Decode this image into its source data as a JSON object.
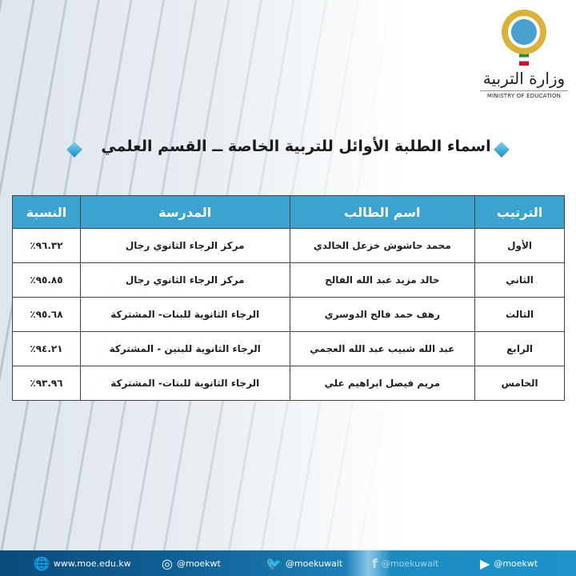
{
  "header": {
    "logo_ar": "وزارة التربية",
    "logo_en": "MINISTRY OF EDUCATION"
  },
  "title": "اسماء الطلبة الأوائل للتربية الخاصة ــ القسم العلمي",
  "table": {
    "columns": [
      "الترتيب",
      "اسم الطالب",
      "المدرسة",
      "النسبة"
    ],
    "rows": [
      {
        "rank": "الأول",
        "name": "محمد حاشوش خزعل الخالدي",
        "school": "مركز الرجاء الثانوي رجال",
        "percent": "٩٦.٣٢٪"
      },
      {
        "rank": "الثاني",
        "name": "خالد مزيد عبد الله الفالح",
        "school": "مركز الرجاء الثانوي رجال",
        "percent": "٩٥.٨٥٪"
      },
      {
        "rank": "الثالث",
        "name": "رهف حمد فالح الدوسري",
        "school": "الرجاء الثانوية للبنات- المشتركة",
        "percent": "٩٥.٦٨٪"
      },
      {
        "rank": "الرابع",
        "name": "عبد الله شبيب عبد الله العجمي",
        "school": "الرجاء الثانوية للبنين - المشتركة",
        "percent": "٩٤.٢١٪"
      },
      {
        "rank": "الخامس",
        "name": "مريم فيصل ابراهيم علي",
        "school": "الرجاء الثانوية للبنات- المشتركة",
        "percent": "٩٣.٩٦٪"
      }
    ]
  },
  "footer": {
    "website": "www.moe.edu.kw",
    "instagram": "@moekwt",
    "twitter": "@moekuwait",
    "facebook": "@moekuwait",
    "youtube": "@moekwt"
  },
  "colors": {
    "header_bg": "#3aa3cf",
    "footer_bg": "#0f5f95"
  }
}
